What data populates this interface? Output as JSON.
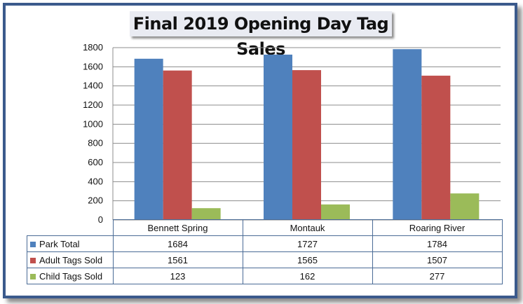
{
  "chart_data": {
    "type": "bar",
    "title": "Final 2019 Opening Day Tag Sales",
    "categories": [
      "Bennett Spring",
      "Montauk",
      "Roaring River"
    ],
    "series": [
      {
        "name": "Park Total",
        "values": [
          1684,
          1727,
          1784
        ],
        "color": "#4f81bd"
      },
      {
        "name": "Adult Tags Sold",
        "values": [
          1561,
          1565,
          1507
        ],
        "color": "#c0504d"
      },
      {
        "name": "Child Tags Sold",
        "values": [
          123,
          162,
          277
        ],
        "color": "#9bbb59"
      }
    ],
    "ylim": [
      0,
      1800
    ],
    "yticks": [
      0,
      200,
      400,
      600,
      800,
      1000,
      1200,
      1400,
      1600,
      1800
    ],
    "grid": true,
    "legend": "data-table"
  }
}
